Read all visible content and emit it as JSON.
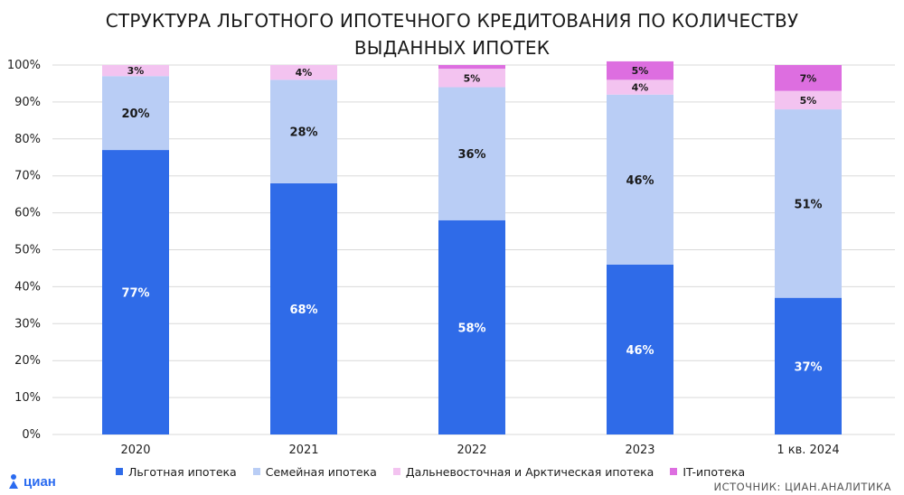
{
  "title_lines": [
    "СТРУКТУРА ЛЬГОТНОГО ИПОТЕЧНОГО КРЕДИТОВАНИЯ ПО КОЛИЧЕСТВУ",
    "ВЫДАННЫХ ИПОТЕК"
  ],
  "source": "Источник: Циан.Аналитика",
  "logo_text": "циан",
  "colors": {
    "lgotnaya": "#2f6be8",
    "semeynaya": "#b9cdf5",
    "dalnevost": "#f3c3f0",
    "it": "#dd6ee0",
    "grid": "#d9d9d9"
  },
  "chart_data": {
    "type": "bar",
    "stacked": true,
    "title": "СТРУКТУРА ЛЬГОТНОГО ИПОТЕЧНОГО КРЕДИТОВАНИЯ ПО КОЛИЧЕСТВУ ВЫДАННЫХ ИПОТЕК",
    "categories": [
      "2020",
      "2021",
      "2022",
      "2023",
      "1 кв. 2024"
    ],
    "ylim": [
      0,
      100
    ],
    "y_ticks": [
      "0%",
      "10%",
      "20%",
      "30%",
      "40%",
      "50%",
      "60%",
      "70%",
      "80%",
      "90%",
      "100%"
    ],
    "grid": true,
    "legend_position": "bottom",
    "series": [
      {
        "name": "Льготная ипотека",
        "color": "#2f6be8",
        "values": [
          77,
          68,
          58,
          46,
          37
        ],
        "labels": [
          "77%",
          "68%",
          "58%",
          "46%",
          "37%"
        ]
      },
      {
        "name": "Семейная ипотека",
        "color": "#b9cdf5",
        "values": [
          20,
          28,
          36,
          46,
          51
        ],
        "labels": [
          "20%",
          "28%",
          "36%",
          "46%",
          "51%"
        ]
      },
      {
        "name": "Дальневосточная и Арктическая ипотека",
        "color": "#f3c3f0",
        "values": [
          3,
          4,
          5,
          4,
          5
        ],
        "labels": [
          "3%",
          "4%",
          "5%",
          "4%",
          "5%"
        ]
      },
      {
        "name": "IT-ипотека",
        "color": "#dd6ee0",
        "values": [
          0,
          0,
          1,
          5,
          7
        ],
        "labels": [
          "",
          "",
          "",
          "5%",
          "7%"
        ]
      }
    ]
  }
}
